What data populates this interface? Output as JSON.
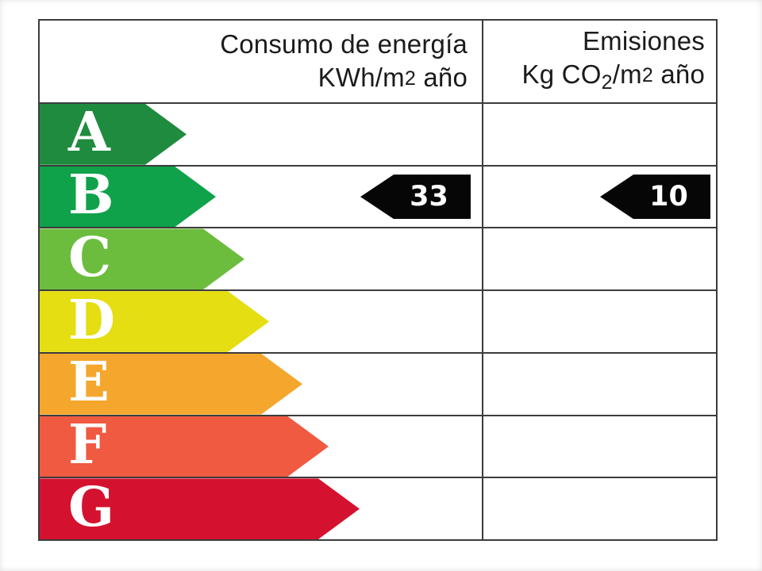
{
  "header": {
    "consumption": {
      "line1": "Consumo de energía",
      "unit_parts": [
        "KWh/m",
        "2",
        " año"
      ]
    },
    "emissions": {
      "line1": "Emisiones",
      "unit_parts": [
        "Kg CO",
        "2",
        "/m",
        "2",
        " año"
      ]
    }
  },
  "bands": [
    {
      "grade": "A",
      "color": "#1f8b3e"
    },
    {
      "grade": "B",
      "color": "#0fa24a"
    },
    {
      "grade": "C",
      "color": "#6cbc3e"
    },
    {
      "grade": "D",
      "color": "#e4de12"
    },
    {
      "grade": "E",
      "color": "#f4a62d"
    },
    {
      "grade": "F",
      "color": "#ef5a41"
    },
    {
      "grade": "G",
      "color": "#d41230"
    }
  ],
  "ratings": {
    "consumption": {
      "value": "33",
      "grade": "B",
      "marker_color": "#060606",
      "text_color": "#ffffff"
    },
    "emissions": {
      "value": "10",
      "grade": "B",
      "marker_color": "#060606",
      "text_color": "#ffffff"
    }
  },
  "colors": {
    "border": "#3c3c3c",
    "header_text": "#1b1b1b",
    "background": "#ffffff"
  },
  "chart_data": {
    "type": "table",
    "columns": [
      "Consumo de energía KWh/m2 año",
      "Emisiones Kg CO2/m2 año"
    ],
    "scale_grades": [
      "A",
      "B",
      "C",
      "D",
      "E",
      "F",
      "G"
    ],
    "scale_colors": [
      "#1f8b3e",
      "#0fa24a",
      "#6cbc3e",
      "#e4de12",
      "#f4a62d",
      "#ef5a41",
      "#d41230"
    ],
    "values": {
      "consumption_kwh_m2_year": 33,
      "emissions_kg_co2_m2_year": 10
    },
    "assigned_grade_consumption": "B",
    "assigned_grade_emissions": "B",
    "legend_position": "none",
    "grid": "table-lines"
  }
}
